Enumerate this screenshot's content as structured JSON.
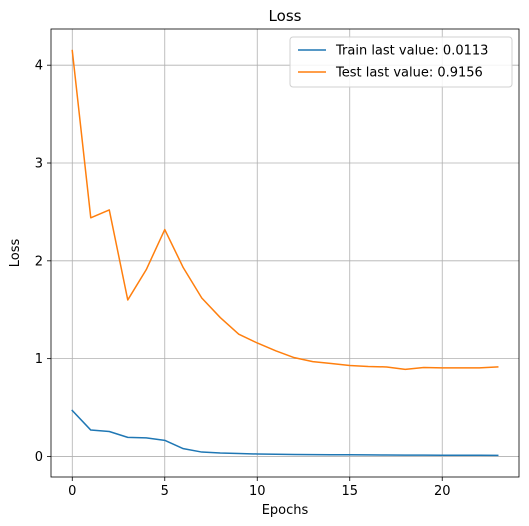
{
  "chart_data": {
    "type": "line",
    "title": "Loss",
    "xlabel": "Epochs",
    "ylabel": "Loss",
    "xlim": [
      -1.15,
      24.15
    ],
    "ylim": [
      -0.21,
      4.37
    ],
    "xticks": [
      0,
      5,
      10,
      15,
      20
    ],
    "yticks": [
      0,
      1,
      2,
      3,
      4
    ],
    "grid": true,
    "legend_position": "top-right",
    "x": [
      0,
      1,
      2,
      3,
      4,
      5,
      6,
      7,
      8,
      9,
      10,
      11,
      12,
      13,
      14,
      15,
      16,
      17,
      18,
      19,
      20,
      21,
      22,
      23
    ],
    "series": [
      {
        "name": "Train last value: 0.0113",
        "color": "#1f77b4",
        "values": [
          0.47,
          0.27,
          0.255,
          0.195,
          0.19,
          0.165,
          0.08,
          0.045,
          0.035,
          0.03,
          0.025,
          0.023,
          0.02,
          0.019,
          0.018,
          0.017,
          0.016,
          0.015,
          0.014,
          0.0135,
          0.013,
          0.012,
          0.0118,
          0.0113
        ]
      },
      {
        "name": "Test last value: 0.9156",
        "color": "#ff7f0e",
        "values": [
          4.15,
          2.44,
          2.52,
          1.6,
          1.91,
          2.32,
          1.93,
          1.62,
          1.42,
          1.25,
          1.16,
          1.08,
          1.01,
          0.97,
          0.95,
          0.93,
          0.92,
          0.915,
          0.89,
          0.91,
          0.905,
          0.905,
          0.906,
          0.9156
        ]
      }
    ]
  }
}
